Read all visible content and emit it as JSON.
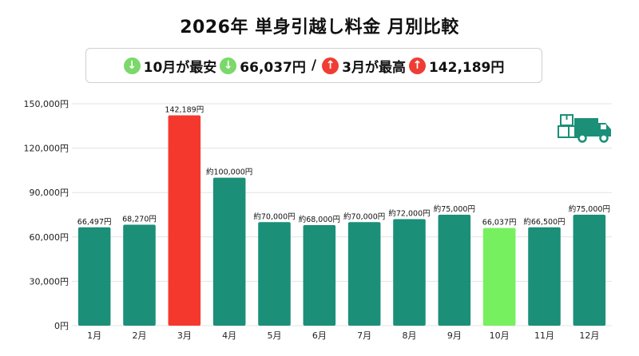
{
  "title": "2026年 単身引越し料金 月別比較",
  "summary": {
    "low_label": "10月が最安",
    "low_value": "66,037円",
    "separator": "/",
    "high_label": "3月が最高",
    "high_value": "142,189円",
    "down_arrow": "↓",
    "up_arrow": "↑"
  },
  "icon": "moving-truck-icon",
  "colors": {
    "bar": "#1b8f78",
    "lowest": "#76f05e",
    "highest": "#f5382e",
    "grid": "#e3e3e3",
    "icon": "#1b8f78"
  },
  "chart_data": {
    "type": "bar",
    "title": "2026年 単身引越し料金 月別比較",
    "categories": [
      "1月",
      "2月",
      "3月",
      "4月",
      "5月",
      "6月",
      "7月",
      "8月",
      "9月",
      "10月",
      "11月",
      "12月"
    ],
    "values": [
      66497,
      68270,
      142189,
      100000,
      70000,
      68000,
      70000,
      72000,
      75000,
      66037,
      66500,
      75000
    ],
    "data_labels": [
      "66,497円",
      "68,270円",
      "142,189円",
      "約100,000円",
      "約70,000円",
      "約68,000円",
      "約70,000円",
      "約72,000円",
      "約75,000円",
      "66,037円",
      "約66,500円",
      "約75,000円"
    ],
    "highlight": {
      "lowest_index": 9,
      "highest_index": 2
    },
    "ylim": [
      0,
      150000
    ],
    "yticks": [
      0,
      30000,
      60000,
      90000,
      120000,
      150000
    ],
    "ytick_labels": [
      "0円",
      "30,000円",
      "60,000円",
      "90,000円",
      "120,000円",
      "150,000円"
    ],
    "xlabel": "",
    "ylabel": "",
    "grid": true
  }
}
